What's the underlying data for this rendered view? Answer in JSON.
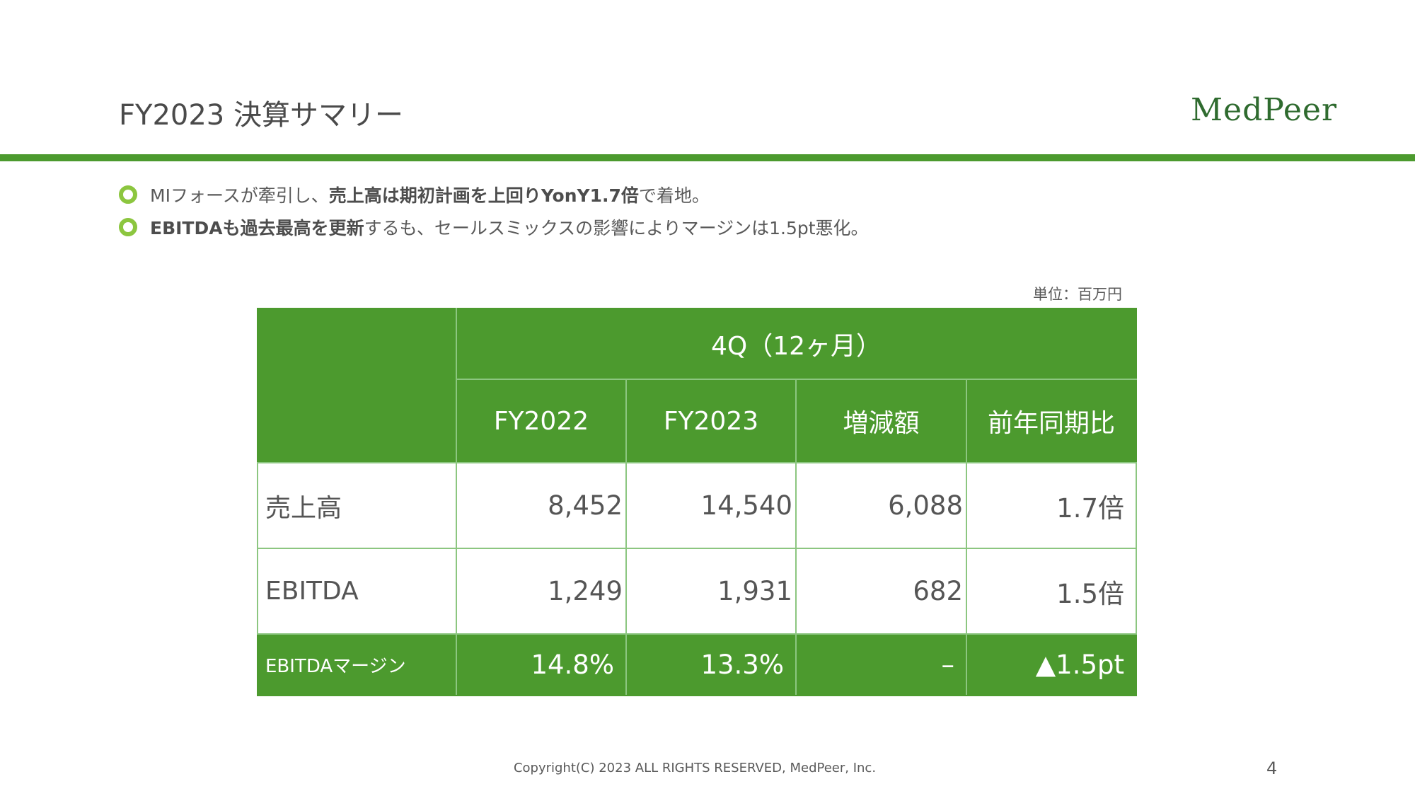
{
  "header": {
    "title": "FY2023 決算サマリー",
    "logo_text": "MedPeer"
  },
  "bullets": [
    {
      "pre": "MIフォースが牽引し、",
      "bold": "売上高は期初計画を上回りYonY1.7倍",
      "post": "で着地。"
    },
    {
      "pre": "",
      "bold": "EBITDAも過去最高を更新",
      "post": "するも、セールスミックスの影響によりマージンは1.5pt悪化。"
    }
  ],
  "table": {
    "unit_label": "単位：百万円",
    "group_header": "4Q（12ヶ月）",
    "columns": [
      "FY2022",
      "FY2023",
      "増減額",
      "前年同期比"
    ],
    "rows": [
      {
        "label": "売上高",
        "values": [
          "8,452",
          "14,540",
          "6,088",
          "1.7倍"
        ]
      },
      {
        "label": "EBITDA",
        "values": [
          "1,249",
          "1,931",
          "682",
          "1.5倍"
        ]
      }
    ],
    "margin_row": {
      "label": "EBITDAマージン",
      "values": [
        "14.8%",
        "13.3%",
        "–",
        "▲1.5pt"
      ]
    }
  },
  "footer": {
    "copyright": "Copyright(C) 2023 ALL RIGHTS RESERVED, MedPeer, Inc.",
    "page_number": "4"
  },
  "colors": {
    "brand_green": "#4c9a2e",
    "bullet_green": "#8cc63f",
    "logo_green": "#2f6b2f"
  }
}
